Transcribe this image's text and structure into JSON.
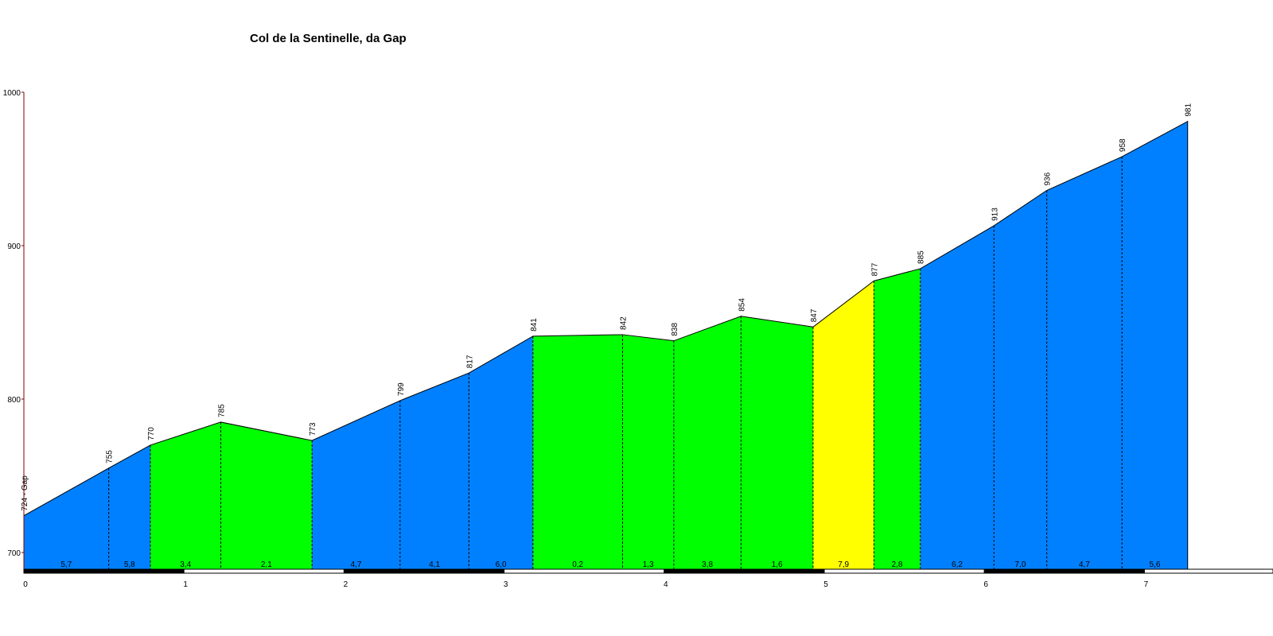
{
  "chart_data": {
    "type": "area",
    "title": "Col de la Sentinelle, da Gap",
    "xlabel": "",
    "ylabel": "",
    "xlim": [
      0,
      7.6
    ],
    "ylim": [
      690,
      1000
    ],
    "y_ticks": [
      700,
      800,
      900,
      1000
    ],
    "x_ticks": [
      0,
      1,
      2,
      3,
      4,
      5,
      6,
      7
    ],
    "points": [
      {
        "x": 0,
        "y": 724,
        "label": "724 - Gap"
      },
      {
        "x": 0.53,
        "y": 755,
        "label": "755"
      },
      {
        "x": 0.79,
        "y": 770,
        "label": "770"
      },
      {
        "x": 1.23,
        "y": 785,
        "label": "785"
      },
      {
        "x": 1.8,
        "y": 773,
        "label": "773"
      },
      {
        "x": 2.35,
        "y": 799,
        "label": "799"
      },
      {
        "x": 2.78,
        "y": 817,
        "label": "817"
      },
      {
        "x": 3.18,
        "y": 841,
        "label": "841"
      },
      {
        "x": 3.74,
        "y": 842,
        "label": "842"
      },
      {
        "x": 4.06,
        "y": 838,
        "label": "838"
      },
      {
        "x": 4.48,
        "y": 854,
        "label": "854"
      },
      {
        "x": 4.93,
        "y": 847,
        "label": "847"
      },
      {
        "x": 5.31,
        "y": 877,
        "label": "877"
      },
      {
        "x": 5.6,
        "y": 885,
        "label": "885"
      },
      {
        "x": 6.06,
        "y": 913,
        "label": "913"
      },
      {
        "x": 6.39,
        "y": 936,
        "label": "936"
      },
      {
        "x": 6.86,
        "y": 958,
        "label": "958"
      },
      {
        "x": 7.27,
        "y": 981,
        "label": "981"
      }
    ],
    "segments": [
      {
        "gradient": "5,7",
        "color": "#0080ff"
      },
      {
        "gradient": "5,8",
        "color": "#0080ff"
      },
      {
        "gradient": "3,4",
        "color": "#00ff00"
      },
      {
        "gradient": "2,1",
        "color": "#00ff00"
      },
      {
        "gradient": "4,7",
        "color": "#0080ff"
      },
      {
        "gradient": "4,1",
        "color": "#0080ff"
      },
      {
        "gradient": "6,0",
        "color": "#0080ff"
      },
      {
        "gradient": "0,2",
        "color": "#00ff00"
      },
      {
        "gradient": "1,3",
        "color": "#00ff00"
      },
      {
        "gradient": "3,8",
        "color": "#00ff00"
      },
      {
        "gradient": "1,6",
        "color": "#00ff00"
      },
      {
        "gradient": "7,9",
        "color": "#ffff00"
      },
      {
        "gradient": "2,8",
        "color": "#00ff00"
      },
      {
        "gradient": "6,2",
        "color": "#0080ff"
      },
      {
        "gradient": "7,0",
        "color": "#0080ff"
      },
      {
        "gradient": "4,7",
        "color": "#0080ff"
      },
      {
        "gradient": "5,6",
        "color": "#0080ff"
      }
    ],
    "colors": {
      "outline": "#000000",
      "axis_y": "#800000",
      "scale_dark": "#000000",
      "scale_light": "#ffffff"
    }
  }
}
